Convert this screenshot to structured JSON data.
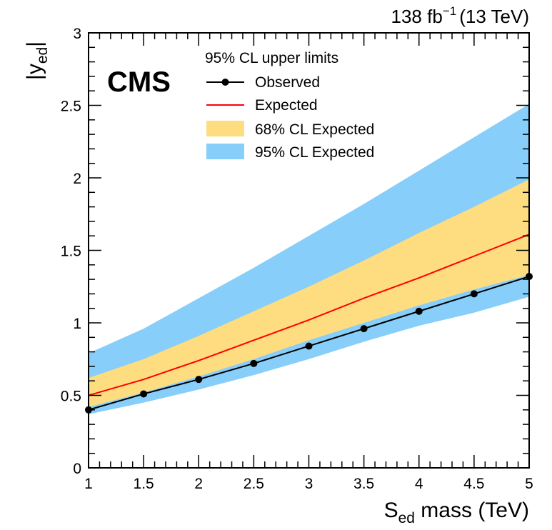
{
  "chart_data": {
    "type": "line",
    "lumi_label": {
      "value": "138 fb",
      "exponent": "−1",
      "energy": "(13 TeV)"
    },
    "experiment_label": "CMS",
    "xlabel": {
      "main": "S",
      "sub": "ed",
      "rest": " mass (TeV)"
    },
    "ylabel": {
      "main": "|y",
      "sub": "ed",
      "rest": "|"
    },
    "xlim": [
      1,
      5
    ],
    "ylim": [
      0,
      3
    ],
    "x_ticks": [
      1,
      1.5,
      2,
      2.5,
      3,
      3.5,
      4,
      4.5,
      5
    ],
    "x_tick_labels": [
      "1",
      "1.5",
      "2",
      "2.5",
      "3",
      "3.5",
      "4",
      "4.5",
      "5"
    ],
    "y_ticks": [
      0,
      0.5,
      1,
      1.5,
      2,
      2.5,
      3
    ],
    "y_tick_labels": [
      "0",
      "0.5",
      "1",
      "1.5",
      "2",
      "2.5",
      "3"
    ],
    "legend": {
      "title": "95% CL upper limits",
      "entries": [
        {
          "key": "observed",
          "label": "Observed"
        },
        {
          "key": "expected",
          "label": "Expected"
        },
        {
          "key": "band68",
          "label": "68% CL Expected"
        },
        {
          "key": "band95",
          "label": "95% CL Expected"
        }
      ]
    },
    "series": [
      {
        "name": "Observed",
        "x": [
          1,
          1.5,
          2,
          2.5,
          3,
          3.5,
          4,
          4.5,
          5
        ],
        "values": [
          0.4,
          0.51,
          0.61,
          0.72,
          0.84,
          0.96,
          1.08,
          1.2,
          1.32
        ]
      },
      {
        "name": "Expected",
        "x": [
          1,
          1.5,
          2,
          2.5,
          3,
          3.5,
          4,
          4.5,
          5
        ],
        "values": [
          0.5,
          0.61,
          0.74,
          0.88,
          1.02,
          1.17,
          1.31,
          1.46,
          1.61
        ]
      }
    ],
    "bands": [
      {
        "name": "95% CL Expected",
        "x": [
          1,
          1.5,
          2,
          2.5,
          3,
          3.5,
          4,
          4.5,
          5
        ],
        "low": [
          0.37,
          0.45,
          0.54,
          0.64,
          0.75,
          0.87,
          0.98,
          1.07,
          1.18
        ],
        "high": [
          0.79,
          0.96,
          1.17,
          1.38,
          1.6,
          1.82,
          2.05,
          2.28,
          2.51
        ]
      },
      {
        "name": "68% CL Expected",
        "x": [
          1,
          1.5,
          2,
          2.5,
          3,
          3.5,
          4,
          4.5,
          5
        ],
        "low": [
          0.42,
          0.52,
          0.63,
          0.75,
          0.88,
          1.0,
          1.12,
          1.23,
          1.33
        ],
        "high": [
          0.62,
          0.75,
          0.91,
          1.08,
          1.25,
          1.43,
          1.62,
          1.8,
          1.99
        ]
      }
    ],
    "colors": {
      "band95": "#87cefa",
      "band68": "#fedc80",
      "expected": "#ff0000",
      "observed": "#000000"
    }
  }
}
